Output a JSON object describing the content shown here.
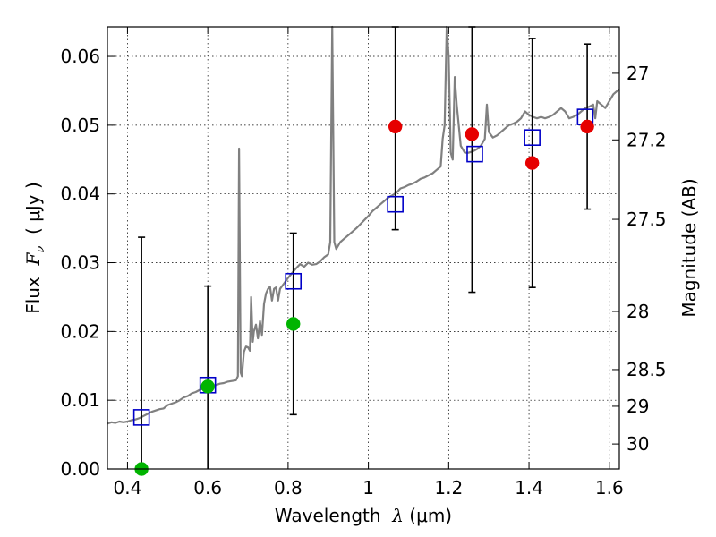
{
  "chart_data": {
    "type": "scatter",
    "xlabel": {
      "prefix": "Wavelength  ",
      "math": "λ",
      "suffix": " (μm)"
    },
    "ylabel": {
      "prefix": "Flux  ",
      "math": "F",
      "sub": "ν",
      "suffix": "  ( μJy )"
    },
    "ylabel_right": "Magnitude (AB)",
    "xlim": [
      0.35,
      1.625
    ],
    "ylim": [
      0.0,
      0.0643
    ],
    "x_ticks": [
      0.4,
      0.6,
      0.8,
      1.0,
      1.2,
      1.4,
      1.6
    ],
    "x_tick_labels": [
      "0.4",
      "0.6",
      "0.8",
      "1",
      "1.2",
      "1.4",
      "1.6"
    ],
    "y_ticks": [
      0.0,
      0.01,
      0.02,
      0.03,
      0.04,
      0.05,
      0.06
    ],
    "y_tick_labels": [
      "0.00",
      "0.01",
      "0.02",
      "0.03",
      "0.04",
      "0.05",
      "0.06"
    ],
    "right_ticks": [
      27,
      27.2,
      27.5,
      28,
      28.5,
      29,
      30
    ],
    "right_tick_labels": [
      "27",
      "27.2",
      "27.5",
      "28",
      "28.5",
      "29",
      "30"
    ],
    "grid": true,
    "colors": {
      "spectrum": "#808080",
      "model": "#0000c8",
      "detection": "#e60000",
      "nondetection": "#00b400",
      "errorbar": "#000000"
    },
    "spectrum": [
      [
        0.35,
        0.0066
      ],
      [
        0.36,
        0.0068
      ],
      [
        0.37,
        0.0067
      ],
      [
        0.38,
        0.0069
      ],
      [
        0.39,
        0.0068
      ],
      [
        0.4,
        0.0069
      ],
      [
        0.41,
        0.0071
      ],
      [
        0.42,
        0.0072
      ],
      [
        0.43,
        0.0074
      ],
      [
        0.44,
        0.0077
      ],
      [
        0.45,
        0.008
      ],
      [
        0.46,
        0.0083
      ],
      [
        0.47,
        0.0085
      ],
      [
        0.48,
        0.0087
      ],
      [
        0.49,
        0.0088
      ],
      [
        0.5,
        0.0093
      ],
      [
        0.51,
        0.0095
      ],
      [
        0.52,
        0.0097
      ],
      [
        0.53,
        0.01
      ],
      [
        0.54,
        0.0104
      ],
      [
        0.55,
        0.0106
      ],
      [
        0.56,
        0.011
      ],
      [
        0.57,
        0.0112
      ],
      [
        0.58,
        0.0115
      ],
      [
        0.59,
        0.0117
      ],
      [
        0.6,
        0.0119
      ],
      [
        0.61,
        0.0121
      ],
      [
        0.62,
        0.0122
      ],
      [
        0.63,
        0.0124
      ],
      [
        0.64,
        0.0125
      ],
      [
        0.65,
        0.0127
      ],
      [
        0.66,
        0.0128
      ],
      [
        0.67,
        0.0129
      ],
      [
        0.675,
        0.0135
      ],
      [
        0.678,
        0.0466
      ],
      [
        0.682,
        0.014
      ],
      [
        0.685,
        0.0135
      ],
      [
        0.69,
        0.017
      ],
      [
        0.695,
        0.0178
      ],
      [
        0.7,
        0.0177
      ],
      [
        0.705,
        0.0172
      ],
      [
        0.708,
        0.025
      ],
      [
        0.712,
        0.0185
      ],
      [
        0.715,
        0.02
      ],
      [
        0.72,
        0.021
      ],
      [
        0.725,
        0.019
      ],
      [
        0.73,
        0.0215
      ],
      [
        0.735,
        0.0195
      ],
      [
        0.74,
        0.024
      ],
      [
        0.745,
        0.0255
      ],
      [
        0.75,
        0.0262
      ],
      [
        0.755,
        0.0265
      ],
      [
        0.76,
        0.0245
      ],
      [
        0.765,
        0.0262
      ],
      [
        0.77,
        0.0264
      ],
      [
        0.775,
        0.0245
      ],
      [
        0.78,
        0.0262
      ],
      [
        0.79,
        0.027
      ],
      [
        0.8,
        0.0278
      ],
      [
        0.81,
        0.0285
      ],
      [
        0.82,
        0.0292
      ],
      [
        0.83,
        0.0298
      ],
      [
        0.84,
        0.0294
      ],
      [
        0.85,
        0.03
      ],
      [
        0.86,
        0.0297
      ],
      [
        0.87,
        0.0298
      ],
      [
        0.88,
        0.0302
      ],
      [
        0.89,
        0.0308
      ],
      [
        0.9,
        0.0312
      ],
      [
        0.905,
        0.033
      ],
      [
        0.91,
        0.0643
      ],
      [
        0.915,
        0.033
      ],
      [
        0.92,
        0.032
      ],
      [
        0.93,
        0.033
      ],
      [
        0.94,
        0.0335
      ],
      [
        0.95,
        0.034
      ],
      [
        0.96,
        0.0345
      ],
      [
        0.97,
        0.035
      ],
      [
        0.98,
        0.0356
      ],
      [
        0.99,
        0.0362
      ],
      [
        1.0,
        0.0368
      ],
      [
        1.01,
        0.0375
      ],
      [
        1.02,
        0.038
      ],
      [
        1.03,
        0.0385
      ],
      [
        1.04,
        0.039
      ],
      [
        1.05,
        0.0395
      ],
      [
        1.06,
        0.0398
      ],
      [
        1.07,
        0.0402
      ],
      [
        1.08,
        0.0408
      ],
      [
        1.09,
        0.041
      ],
      [
        1.1,
        0.0413
      ],
      [
        1.11,
        0.0415
      ],
      [
        1.12,
        0.0418
      ],
      [
        1.13,
        0.0422
      ],
      [
        1.14,
        0.0424
      ],
      [
        1.15,
        0.0427
      ],
      [
        1.16,
        0.043
      ],
      [
        1.17,
        0.0435
      ],
      [
        1.18,
        0.044
      ],
      [
        1.185,
        0.048
      ],
      [
        1.19,
        0.05
      ],
      [
        1.195,
        0.0643
      ],
      [
        1.2,
        0.06
      ],
      [
        1.205,
        0.046
      ],
      [
        1.21,
        0.045
      ],
      [
        1.215,
        0.057
      ],
      [
        1.22,
        0.053
      ],
      [
        1.23,
        0.047
      ],
      [
        1.24,
        0.046
      ],
      [
        1.25,
        0.046
      ],
      [
        1.26,
        0.0462
      ],
      [
        1.27,
        0.0465
      ],
      [
        1.28,
        0.047
      ],
      [
        1.29,
        0.048
      ],
      [
        1.295,
        0.053
      ],
      [
        1.3,
        0.049
      ],
      [
        1.31,
        0.0482
      ],
      [
        1.32,
        0.0485
      ],
      [
        1.33,
        0.049
      ],
      [
        1.34,
        0.0495
      ],
      [
        1.35,
        0.05
      ],
      [
        1.36,
        0.0502
      ],
      [
        1.37,
        0.0505
      ],
      [
        1.38,
        0.051
      ],
      [
        1.39,
        0.052
      ],
      [
        1.4,
        0.0515
      ],
      [
        1.41,
        0.0512
      ],
      [
        1.42,
        0.051
      ],
      [
        1.43,
        0.0512
      ],
      [
        1.44,
        0.051
      ],
      [
        1.45,
        0.0512
      ],
      [
        1.46,
        0.0515
      ],
      [
        1.47,
        0.052
      ],
      [
        1.48,
        0.0525
      ],
      [
        1.49,
        0.052
      ],
      [
        1.5,
        0.051
      ],
      [
        1.51,
        0.0512
      ],
      [
        1.52,
        0.0515
      ],
      [
        1.53,
        0.052
      ],
      [
        1.54,
        0.0525
      ],
      [
        1.55,
        0.0527
      ],
      [
        1.56,
        0.053
      ],
      [
        1.565,
        0.051
      ],
      [
        1.57,
        0.0535
      ],
      [
        1.58,
        0.053
      ],
      [
        1.59,
        0.0525
      ],
      [
        1.6,
        0.0535
      ],
      [
        1.61,
        0.0545
      ],
      [
        1.62,
        0.055
      ],
      [
        1.625,
        0.0552
      ]
    ],
    "model_points": [
      {
        "x": 0.435,
        "y": 0.0075
      },
      {
        "x": 0.6,
        "y": 0.0122
      },
      {
        "x": 0.813,
        "y": 0.0273
      },
      {
        "x": 1.067,
        "y": 0.0385
      },
      {
        "x": 1.265,
        "y": 0.0458
      },
      {
        "x": 1.408,
        "y": 0.0482
      },
      {
        "x": 1.54,
        "y": 0.0512
      }
    ],
    "observed_points": [
      {
        "x": 0.435,
        "y": 0.0,
        "yerr": 0.0337,
        "kind": "nondetection"
      },
      {
        "x": 0.6,
        "y": 0.012,
        "yerr": 0.0146,
        "kind": "nondetection"
      },
      {
        "x": 0.813,
        "y": 0.0211,
        "yerr": 0.0132,
        "kind": "nondetection"
      },
      {
        "x": 1.067,
        "y": 0.0498,
        "yerr": 0.015,
        "kind": "detection"
      },
      {
        "x": 1.258,
        "y": 0.0487,
        "yerr": 0.023,
        "kind": "detection"
      },
      {
        "x": 1.408,
        "y": 0.0445,
        "yerr": 0.0181,
        "kind": "detection"
      },
      {
        "x": 1.545,
        "y": 0.0498,
        "yerr": 0.012,
        "kind": "detection"
      }
    ]
  }
}
